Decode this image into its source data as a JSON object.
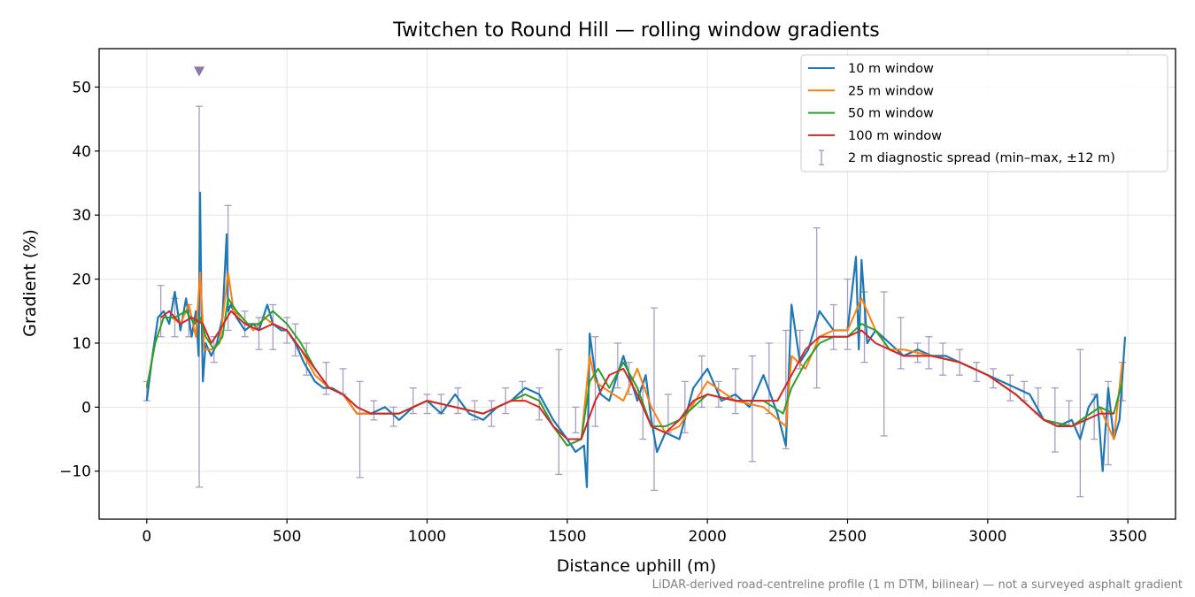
{
  "chart_data": {
    "type": "line",
    "title": "Twitchen to Round Hill — rolling window gradients",
    "xlabel": "Distance uphill (m)",
    "ylabel": "Gradient (%)",
    "xlim": [
      -170,
      3670
    ],
    "ylim": [
      -17.5,
      56
    ],
    "x_ticks": [
      0,
      500,
      1000,
      1500,
      2000,
      2500,
      3000,
      3500
    ],
    "x_tick_labels": [
      "0",
      "500",
      "1000",
      "1500",
      "2000",
      "2500",
      "3000",
      "3500"
    ],
    "y_ticks": [
      -10,
      0,
      10,
      20,
      30,
      40,
      50
    ],
    "y_tick_labels": [
      "−10",
      "0",
      "10",
      "20",
      "30",
      "40",
      "50"
    ],
    "grid": true,
    "legend_placement": "top-right",
    "footnote": "LiDAR-derived road-centreline profile (1 m DTM, bilinear) — not a surveyed asphalt gradient",
    "marker": {
      "x": 187,
      "y": 52.5,
      "shape": "triangle-down",
      "color": "#8c75a8"
    },
    "series": [
      {
        "name": "10 m window",
        "color": "#1f77b4",
        "x": [
          0,
          20,
          40,
          60,
          80,
          100,
          120,
          140,
          160,
          175,
          185,
          190,
          195,
          200,
          210,
          230,
          250,
          270,
          285,
          290,
          300,
          320,
          350,
          380,
          400,
          430,
          450,
          480,
          500,
          530,
          560,
          600,
          630,
          660,
          700,
          750,
          800,
          850,
          900,
          950,
          1000,
          1050,
          1100,
          1150,
          1200,
          1250,
          1300,
          1350,
          1400,
          1450,
          1500,
          1530,
          1560,
          1570,
          1580,
          1600,
          1620,
          1650,
          1700,
          1750,
          1780,
          1800,
          1820,
          1850,
          1900,
          1950,
          2000,
          2050,
          2100,
          2150,
          2200,
          2250,
          2280,
          2300,
          2330,
          2360,
          2400,
          2450,
          2500,
          2530,
          2540,
          2550,
          2570,
          2600,
          2650,
          2700,
          2750,
          2800,
          2850,
          2900,
          2950,
          3000,
          3050,
          3100,
          3150,
          3200,
          3250,
          3300,
          3330,
          3360,
          3390,
          3410,
          3430,
          3450,
          3470,
          3490
        ],
        "y": [
          1,
          8,
          14,
          15,
          13,
          18,
          12,
          17,
          11,
          15,
          8,
          33.5,
          15,
          4,
          10,
          8,
          10,
          14,
          27,
          15,
          16,
          14,
          12,
          13,
          12,
          16,
          13,
          12,
          12,
          10,
          7,
          4,
          3,
          3,
          2,
          -1,
          -1,
          0,
          -2,
          0,
          1,
          -1,
          2,
          -1,
          -2,
          0,
          1,
          3,
          2,
          -2,
          -5,
          -7,
          -6,
          -12.5,
          11.5,
          5,
          2,
          1,
          8,
          1,
          5,
          -2,
          -7,
          -4,
          -5,
          3,
          6,
          1,
          2,
          0,
          5,
          -1,
          -6,
          16,
          7,
          9,
          15,
          12,
          12,
          23.5,
          9,
          23,
          10,
          12,
          10,
          8,
          9,
          8,
          8,
          7,
          6,
          5,
          4,
          3,
          2,
          -2,
          -3,
          -2,
          -5,
          0,
          2,
          -10,
          3,
          -5,
          -2,
          11
        ]
      },
      {
        "name": "25 m window",
        "color": "#ff7f0e",
        "x": [
          0,
          30,
          60,
          90,
          120,
          150,
          175,
          190,
          205,
          230,
          260,
          290,
          310,
          340,
          380,
          420,
          450,
          500,
          550,
          600,
          650,
          700,
          750,
          800,
          900,
          1000,
          1100,
          1200,
          1300,
          1350,
          1400,
          1450,
          1500,
          1550,
          1580,
          1600,
          1630,
          1700,
          1750,
          1800,
          1850,
          1900,
          2000,
          2100,
          2200,
          2280,
          2300,
          2350,
          2400,
          2450,
          2500,
          2550,
          2600,
          2650,
          2700,
          2800,
          2900,
          3000,
          3100,
          3200,
          3300,
          3400,
          3450,
          3480
        ],
        "y": [
          3,
          10,
          14,
          14,
          13,
          16,
          11,
          21,
          9,
          9,
          10,
          21,
          15,
          14,
          12,
          14,
          13,
          12,
          9,
          5,
          3,
          2,
          -1,
          -1,
          -1,
          1,
          0,
          -1,
          1,
          2,
          1,
          -3,
          -6,
          -5,
          8,
          4,
          3,
          1,
          6,
          0,
          -4,
          -3,
          4,
          1,
          0,
          -3,
          8,
          6,
          11,
          12,
          12,
          17,
          12,
          9,
          9,
          8,
          7,
          5,
          2,
          -2,
          -3,
          0,
          -5,
          7
        ]
      },
      {
        "name": "50 m window",
        "color": "#2ca02c",
        "x": [
          0,
          30,
          60,
          100,
          140,
          170,
          190,
          210,
          240,
          270,
          290,
          320,
          360,
          400,
          450,
          500,
          550,
          600,
          650,
          700,
          750,
          800,
          900,
          1000,
          1100,
          1200,
          1300,
          1350,
          1400,
          1450,
          1500,
          1550,
          1580,
          1610,
          1650,
          1700,
          1750,
          1800,
          1850,
          1900,
          2000,
          2100,
          2200,
          2270,
          2300,
          2350,
          2400,
          2450,
          2500,
          2550,
          2600,
          2650,
          2700,
          2800,
          2900,
          3000,
          3100,
          3200,
          3300,
          3400,
          3450,
          3480
        ],
        "y": [
          3,
          10,
          14,
          14,
          15,
          13,
          14,
          11,
          9,
          11,
          17,
          15,
          13,
          13,
          15,
          13,
          10,
          6,
          3,
          2,
          0,
          -1,
          -1,
          1,
          0,
          -1,
          1,
          2,
          1,
          -3,
          -6,
          -5,
          4,
          6,
          3,
          7,
          3,
          -3,
          -3,
          -2,
          2,
          1,
          1,
          -1,
          3,
          7,
          10,
          11,
          11,
          13,
          12,
          9,
          8,
          8,
          7,
          5,
          2,
          -2,
          -3,
          0,
          -1,
          4
        ]
      },
      {
        "name": "100 m window",
        "color": "#d62728",
        "x": [
          50,
          80,
          120,
          160,
          200,
          230,
          260,
          300,
          350,
          400,
          450,
          500,
          550,
          600,
          650,
          700,
          750,
          800,
          900,
          1000,
          1100,
          1200,
          1300,
          1350,
          1400,
          1450,
          1500,
          1550,
          1600,
          1650,
          1700,
          1750,
          1800,
          1850,
          1900,
          1950,
          2000,
          2100,
          2200,
          2250,
          2300,
          2350,
          2400,
          2450,
          2500,
          2550,
          2600,
          2650,
          2700,
          2800,
          2900,
          3000,
          3100,
          3200,
          3250,
          3300,
          3350,
          3400,
          3450
        ],
        "y": [
          14,
          15,
          13,
          14,
          13,
          10,
          12,
          15,
          13,
          12,
          13,
          12,
          9,
          6,
          3,
          2,
          0,
          -1,
          -1,
          1,
          0,
          -1,
          1,
          1,
          0,
          -3,
          -5,
          -5,
          1,
          5,
          6,
          2,
          -3,
          -4,
          -2,
          1,
          2,
          1,
          1,
          1,
          5,
          9,
          11,
          11,
          11,
          12,
          10,
          9,
          8,
          8,
          7,
          5,
          2,
          -2,
          -3,
          -3,
          -2,
          -1,
          -1
        ]
      }
    ],
    "errorbars": {
      "name": "2 m diagnostic spread (min–max, ±12 m)",
      "color": "#a89cc4",
      "x": [
        0,
        50,
        100,
        150,
        187,
        240,
        290,
        350,
        400,
        450,
        500,
        530,
        570,
        640,
        700,
        760,
        810,
        880,
        950,
        1000,
        1050,
        1110,
        1170,
        1230,
        1280,
        1340,
        1400,
        1470,
        1530,
        1600,
        1680,
        1720,
        1770,
        1810,
        1860,
        1920,
        1980,
        2040,
        2100,
        2160,
        2220,
        2280,
        2330,
        2390,
        2450,
        2500,
        2560,
        2630,
        2690,
        2750,
        2790,
        2840,
        2900,
        2960,
        3020,
        3080,
        3130,
        3180,
        3240,
        3290,
        3330,
        3380,
        3430,
        3480
      ],
      "low": [
        1,
        11,
        11,
        11,
        -12.5,
        7,
        12,
        11,
        9,
        9,
        10,
        8,
        5,
        2,
        2,
        -11,
        -2,
        -3,
        -1,
        -1,
        -1,
        -1,
        -2,
        -3,
        -1,
        1,
        -2,
        -10.5,
        -4,
        -3,
        3,
        2,
        -5,
        -13,
        -4,
        -4,
        0,
        0,
        -1,
        -8.5,
        -1,
        -6.5,
        6,
        3,
        9,
        9,
        7,
        -4.5,
        6,
        7,
        6,
        5,
        5,
        4,
        3,
        1,
        1,
        -1,
        -7,
        -3,
        -14,
        -5,
        -9,
        1
      ],
      "high": [
        4,
        19,
        17,
        16,
        47,
        11,
        31.5,
        15,
        14,
        16,
        14,
        13,
        10,
        7,
        6,
        4,
        1,
        0,
        3,
        2,
        2,
        3,
        1,
        1,
        3,
        4,
        3,
        9,
        0,
        11,
        10,
        7,
        3,
        15.5,
        2,
        4,
        8,
        4,
        6,
        8,
        10,
        12,
        12,
        28,
        16,
        20,
        18,
        18,
        14,
        10,
        11,
        10,
        9,
        7,
        6,
        5,
        4,
        3,
        3,
        1,
        9,
        2,
        4,
        7
      ]
    }
  }
}
